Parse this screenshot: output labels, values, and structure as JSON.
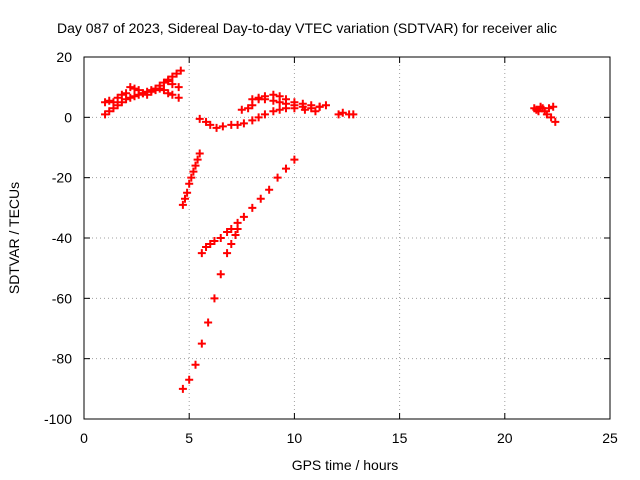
{
  "chart_data": {
    "type": "scatter",
    "title": "Day 087 of 2023, Sidereal Day-to-day VTEC variation (SDTVAR) for receiver alic",
    "xlabel": "GPS time / hours",
    "ylabel": "SDTVAR / TECUs",
    "xlim": [
      0,
      25
    ],
    "ylim": [
      -100,
      20
    ],
    "x_ticks": [
      0,
      5,
      10,
      15,
      20,
      25
    ],
    "y_ticks": [
      -100,
      -80,
      -60,
      -40,
      -20,
      0,
      20
    ],
    "grid": true,
    "marker": "plus",
    "colors": {
      "series": "#ff0000",
      "grid": "#a0a0a0",
      "axes": "#000000"
    },
    "series": [
      {
        "x": [
          1.0,
          1.2,
          1.4,
          1.6,
          1.8,
          2.0,
          2.2,
          2.4,
          2.6,
          2.8,
          3.0,
          3.2,
          3.4,
          3.6,
          3.8,
          4.0,
          4.2,
          4.5
        ],
        "y": [
          5.0,
          5.5,
          5.0,
          6.5,
          7.5,
          8.0,
          10.0,
          9.5,
          9.0,
          8.0,
          7.5,
          8.5,
          9.0,
          10.5,
          11.5,
          12.0,
          11.0,
          10.0
        ]
      },
      {
        "x": [
          1.0,
          1.2,
          1.4,
          1.6,
          1.8,
          2.0,
          2.2,
          2.4,
          2.6,
          2.8,
          3.0,
          3.2,
          3.4,
          3.6,
          3.8,
          4.0,
          4.2,
          4.5
        ],
        "y": [
          1.0,
          2.0,
          3.0,
          4.0,
          5.0,
          6.0,
          6.5,
          7.0,
          7.5,
          8.0,
          8.5,
          9.0,
          9.5,
          9.5,
          9.0,
          8.0,
          7.5,
          6.5
        ]
      },
      {
        "x": [
          4.0,
          4.2,
          4.4,
          4.6
        ],
        "y": [
          12.5,
          13.5,
          14.5,
          15.5
        ]
      },
      {
        "x": [
          4.7,
          4.8,
          4.9,
          5.0,
          5.1,
          5.2,
          5.3,
          5.4,
          5.5
        ],
        "y": [
          -29.0,
          -27.0,
          -25.0,
          -22.0,
          -20.0,
          -18.0,
          -16.0,
          -14.0,
          -12.0
        ]
      },
      {
        "x": [
          5.5,
          5.8,
          6.0,
          6.3,
          6.6,
          7.0,
          7.3,
          7.6,
          8.0,
          8.3,
          8.6,
          9.0,
          9.3,
          9.6,
          10.0,
          10.5,
          11.0
        ],
        "y": [
          -0.5,
          -1.5,
          -2.5,
          -3.5,
          -3.0,
          -2.5,
          -2.5,
          -2.0,
          -1.0,
          0.0,
          1.0,
          2.0,
          2.5,
          3.0,
          3.0,
          2.5,
          2.0
        ]
      },
      {
        "x": [
          7.5,
          7.8,
          8.0,
          8.3,
          8.6,
          9.0,
          9.3,
          9.6,
          10.0,
          10.4,
          10.8,
          11.2
        ],
        "y": [
          2.5,
          3.0,
          4.0,
          6.0,
          7.0,
          7.5,
          7.0,
          6.0,
          5.0,
          4.5,
          4.0,
          3.5
        ]
      },
      {
        "x": [
          8.0,
          8.3,
          8.6,
          9.0,
          9.3,
          9.6,
          10.0,
          10.4,
          10.8,
          11.2,
          11.5
        ],
        "y": [
          6.0,
          6.5,
          6.0,
          5.5,
          5.0,
          4.5,
          4.0,
          3.5,
          3.0,
          3.5,
          4.0
        ]
      },
      {
        "x": [
          4.7,
          5.0,
          5.3,
          5.6,
          5.9,
          6.2,
          6.5,
          6.8,
          7.0,
          7.2,
          7.3
        ],
        "y": [
          -90.0,
          -87.0,
          -82.0,
          -75.0,
          -68.0,
          -60.0,
          -52.0,
          -45.0,
          -42.0,
          -39.0,
          -37.0
        ]
      },
      {
        "x": [
          5.6,
          5.8,
          6.0,
          6.2,
          6.5,
          6.8,
          7.0,
          7.3,
          7.6,
          8.0,
          8.4,
          8.8,
          9.2,
          9.6,
          10.0
        ],
        "y": [
          -45.0,
          -43.0,
          -42.0,
          -41.0,
          -40.0,
          -38.0,
          -37.0,
          -35.0,
          -33.0,
          -30.0,
          -27.0,
          -24.0,
          -20.0,
          -17.0,
          -14.0
        ]
      },
      {
        "x": [
          12.1,
          12.3,
          12.6,
          12.8
        ],
        "y": [
          1.0,
          1.5,
          1.0,
          1.0
        ]
      },
      {
        "x": [
          21.4,
          21.6,
          21.8,
          22.0,
          22.2,
          22.4
        ],
        "y": [
          3.0,
          2.0,
          3.0,
          1.0,
          0.0,
          -1.5
        ]
      },
      {
        "x": [
          21.5,
          21.7,
          21.9,
          22.1,
          22.3
        ],
        "y": [
          2.5,
          3.5,
          2.0,
          3.0,
          3.5
        ]
      }
    ]
  }
}
